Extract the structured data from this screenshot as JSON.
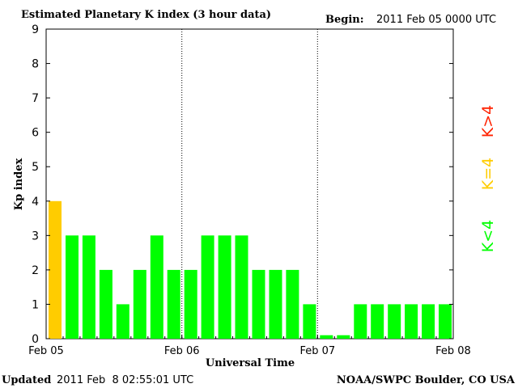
{
  "header": {
    "title": "Estimated Planetary K index (3 hour data)",
    "begin_label": "Begin:",
    "begin_value": "2011 Feb 05 0000 UTC"
  },
  "footer": {
    "updated_label": "Updated",
    "updated_value": "2011 Feb  8 02:55:01 UTC",
    "source": "NOAA/SWPC Boulder, CO USA"
  },
  "legend": {
    "greater": "K>4",
    "equal": "K=4",
    "less": "K<4"
  },
  "colors": {
    "low": "#00ff00",
    "equal": "#ffcc00",
    "high": "#ff2200"
  },
  "chart_data": {
    "type": "bar",
    "title": "Estimated Planetary K index (3 hour data)",
    "xlabel": "Universal Time",
    "ylabel": "Kp index",
    "ylim": [
      0,
      9
    ],
    "yticks": [
      0,
      1,
      2,
      3,
      4,
      5,
      6,
      7,
      8,
      9
    ],
    "xticks": [
      "Feb 05",
      "Feb 06",
      "Feb 07",
      "Feb 08"
    ],
    "day_separators": [
      "Feb 06",
      "Feb 07"
    ],
    "grid": false,
    "interval_hours": 3,
    "values": [
      4,
      3,
      3,
      2,
      1,
      2,
      3,
      2,
      2,
      3,
      3,
      3,
      2,
      2,
      2,
      1,
      0.1,
      0.1,
      1,
      1,
      1,
      1,
      1,
      1
    ]
  }
}
